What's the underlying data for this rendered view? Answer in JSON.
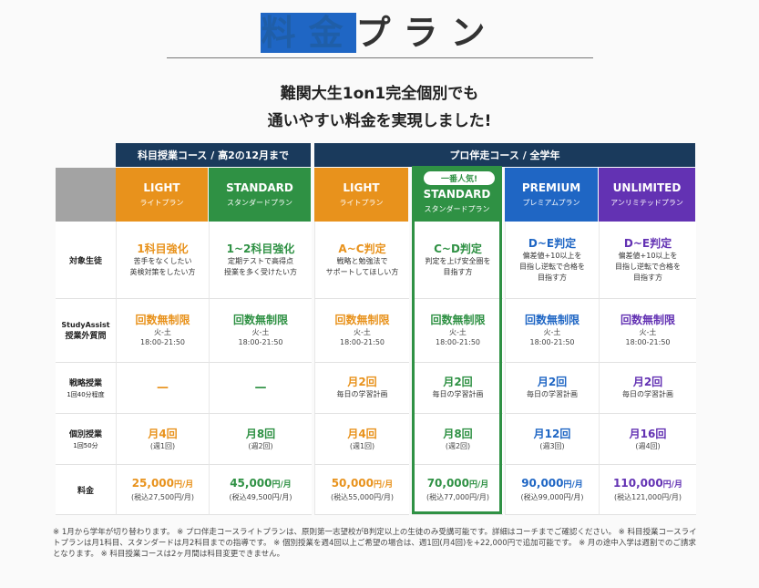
{
  "header": {
    "title_accent": "料金",
    "title_rest": "プラン",
    "subtitle_line1": "難関大生1on1完全個別でも",
    "subtitle_line2": "通いやすい料金を実現しました!"
  },
  "groups": {
    "subject_course": "科目授業コース / 高2の12月まで",
    "pro_course": "プロ伴走コース / 全学年"
  },
  "badge": "一番人気!",
  "plans": [
    {
      "name": "LIGHT",
      "kana": "ライトプラン",
      "color": "#e8921c"
    },
    {
      "name": "STANDARD",
      "kana": "スタンダードプラン",
      "color": "#2f9144"
    },
    {
      "name": "LIGHT",
      "kana": "ライトプラン",
      "color": "#e8921c"
    },
    {
      "name": "STANDARD",
      "kana": "スタンダードプラン",
      "color": "#2f9144"
    },
    {
      "name": "PREMIUM",
      "kana": "プレミアムプラン",
      "color": "#1f66c4"
    },
    {
      "name": "UNLIMITED",
      "kana": "アンリミテッドプラン",
      "color": "#6332b3"
    }
  ],
  "row_labels": {
    "target": "対象生徒",
    "study_assist_1": "StudyAssist",
    "study_assist_2": "授業外質問",
    "strategy": "戦略授業",
    "strategy_sub": "1回40分程度",
    "individual": "個別授業",
    "individual_sub": "1回50分",
    "price": "料金"
  },
  "target": [
    {
      "head": "1科目強化",
      "l1": "苦手をなくしたい",
      "l2": "英検対策をしたい方",
      "l3": ""
    },
    {
      "head": "1~2科目強化",
      "l1": "定期テストで高得点",
      "l2": "授業を多く受けたい方",
      "l3": ""
    },
    {
      "head": "A~C判定",
      "l1": "戦略と勉強法で",
      "l2": "サポートしてほしい方",
      "l3": ""
    },
    {
      "head": "C~D判定",
      "l1": "判定を上げ安全圏を",
      "l2": "目指す方",
      "l3": ""
    },
    {
      "head": "D~E判定",
      "l1": "偏差値+10以上を",
      "l2": "目指し逆転で合格を",
      "l3": "目指す方"
    },
    {
      "head": "D~E判定",
      "l1": "偏差値+10以上を",
      "l2": "目指し逆転で合格を",
      "l3": "目指す方"
    }
  ],
  "assist": {
    "head": "回数無制限",
    "day": "火-土",
    "time": "18:00-21:50"
  },
  "strategy": [
    {
      "head": "—",
      "sub": ""
    },
    {
      "head": "—",
      "sub": ""
    },
    {
      "head": "月2回",
      "sub": "毎日の学習計画"
    },
    {
      "head": "月2回",
      "sub": "毎日の学習計画"
    },
    {
      "head": "月2回",
      "sub": "毎日の学習計画"
    },
    {
      "head": "月2回",
      "sub": "毎日の学習計画"
    }
  ],
  "individual": [
    {
      "head": "月4回",
      "sub": "(週1回)"
    },
    {
      "head": "月8回",
      "sub": "(週2回)"
    },
    {
      "head": "月4回",
      "sub": "(週1回)"
    },
    {
      "head": "月8回",
      "sub": "(週2回)"
    },
    {
      "head": "月12回",
      "sub": "(週3回)"
    },
    {
      "head": "月16回",
      "sub": "(週4回)"
    }
  ],
  "price": [
    {
      "amount": "25,000",
      "unit": "円/月",
      "tax": "(税込27,500円/月)"
    },
    {
      "amount": "45,000",
      "unit": "円/月",
      "tax": "(税込49,500円/月)"
    },
    {
      "amount": "50,000",
      "unit": "円/月",
      "tax": "(税込55,000円/月)"
    },
    {
      "amount": "70,000",
      "unit": "円/月",
      "tax": "(税込77,000円/月)"
    },
    {
      "amount": "90,000",
      "unit": "円/月",
      "tax": "(税込99,000円/月)"
    },
    {
      "amount": "110,000",
      "unit": "円/月",
      "tax": "(税込121,000円/月)"
    }
  ],
  "notes": "※ 1月から学年が切り替わります。 ※ プロ伴走コースライトプランは、原則第一志望校がB判定以上の生徒のみ受講可能です。詳細はコーチまでご確認ください。 ※ 科目授業コースライトプランは月1科目、スタンダードは月2科目までの指導です。 ※ 個別授業を週4回以上ご希望の場合は、週1回(月4回)を+22,000円で追加可能です。 ※ 月の途中入学は週割でのご請求となります。 ※ 科目授業コースは2ヶ月間は科目変更できません。"
}
